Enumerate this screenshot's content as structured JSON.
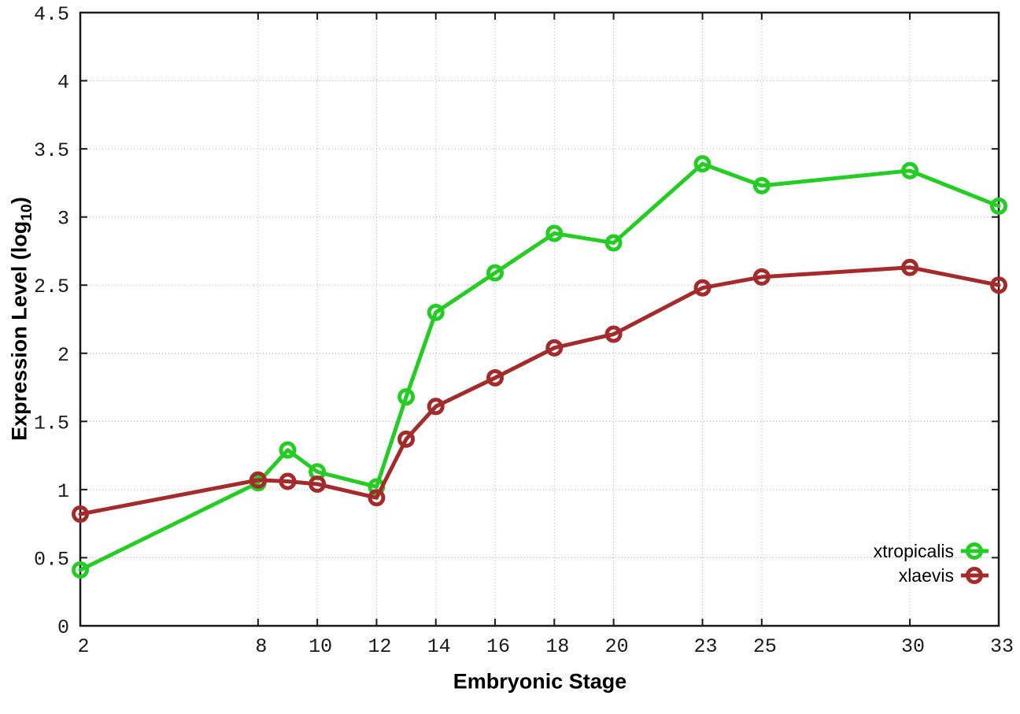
{
  "chart_data": {
    "type": "line",
    "title": "",
    "xlabel": "Embryonic Stage",
    "ylabel_main": "Expression Level (log",
    "ylabel_sub": "10",
    "ylabel_suffix": ")",
    "x": [
      2,
      8,
      9,
      10,
      12,
      13,
      14,
      16,
      18,
      20,
      23,
      25,
      30,
      33
    ],
    "x_tick_labels": [
      2,
      8,
      10,
      12,
      14,
      16,
      18,
      20,
      23,
      25,
      30,
      33
    ],
    "y_ticks": [
      0,
      0.5,
      1,
      1.5,
      2,
      2.5,
      3,
      3.5,
      4,
      4.5
    ],
    "xlim": [
      2,
      33
    ],
    "ylim": [
      0,
      4.5
    ],
    "grid": true,
    "legend_position": "inside-bottom-right",
    "series": [
      {
        "name": "xtropicalis",
        "color": "#24cc24",
        "values": [
          0.41,
          1.05,
          1.29,
          1.13,
          1.02,
          1.68,
          2.3,
          2.59,
          2.88,
          2.81,
          3.39,
          3.23,
          3.34,
          3.08
        ]
      },
      {
        "name": "xlaevis",
        "color": "#a32b2b",
        "values": [
          0.82,
          1.07,
          1.06,
          1.04,
          0.94,
          1.37,
          1.61,
          1.82,
          2.04,
          2.14,
          2.48,
          2.56,
          2.63,
          2.5
        ]
      }
    ],
    "style": {
      "grid_color": "#b5b5b5",
      "border_color": "#1a1a1a",
      "tick_label_color": "#1a1a1a",
      "marker": "open-circle"
    }
  }
}
